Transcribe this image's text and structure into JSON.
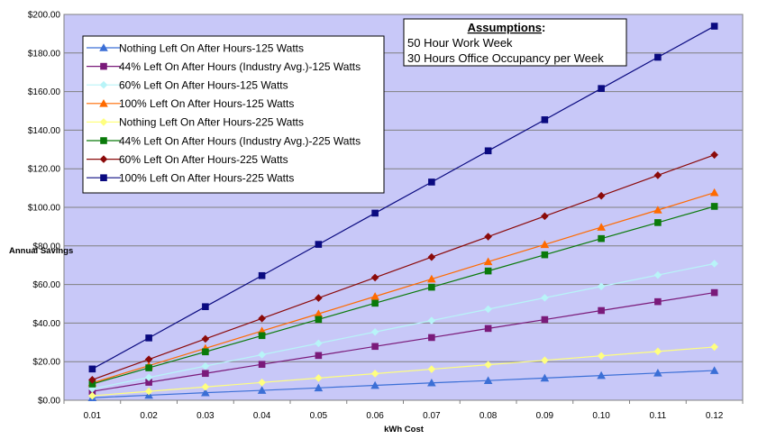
{
  "chart_data": {
    "type": "line",
    "xlabel": "kWh Cost",
    "ylabel": "Annual Savings",
    "ylim": [
      0,
      200
    ],
    "ytick_step": 20,
    "y_tick_labels": [
      "$0.00",
      "$20.00",
      "$40.00",
      "$60.00",
      "$80.00",
      "$100.00",
      "$120.00",
      "$140.00",
      "$160.00",
      "$180.00",
      "$200.00"
    ],
    "x": [
      "0.01",
      "0.02",
      "0.03",
      "0.04",
      "0.05",
      "0.06",
      "0.07",
      "0.08",
      "0.09",
      "0.10",
      "0.11",
      "0.12"
    ],
    "grid": "horizontal",
    "legend_position": "top-left",
    "plot_background": "#c8c8f8",
    "series": [
      {
        "name": "Nothing Left On After Hours-125 Watts",
        "color": "#3b6fd6",
        "marker": "triangle",
        "values": [
          1.3,
          2.6,
          3.9,
          5.1,
          6.4,
          7.7,
          9.0,
          10.2,
          11.5,
          12.8,
          14.1,
          15.4
        ]
      },
      {
        "name": "44% Left On After Hours (Industry Avg.)-125 Watts",
        "color": "#7a1a7a",
        "marker": "square",
        "values": [
          4.6,
          9.3,
          13.9,
          18.6,
          23.2,
          27.9,
          32.5,
          37.2,
          41.8,
          46.5,
          51.1,
          55.8
        ]
      },
      {
        "name": "60% Left On After Hours-125 Watts",
        "color": "#b8f4f8",
        "marker": "diamond",
        "values": [
          5.9,
          11.8,
          17.7,
          23.6,
          29.5,
          35.4,
          41.3,
          47.2,
          53.1,
          59.0,
          64.9,
          70.8
        ]
      },
      {
        "name": "100% Left On After Hours-125 Watts",
        "color": "#ff6a00",
        "marker": "triangle",
        "values": [
          9.0,
          17.9,
          26.9,
          35.9,
          44.8,
          53.8,
          62.8,
          71.8,
          80.7,
          89.7,
          98.6,
          107.6
        ]
      },
      {
        "name": "Nothing Left On After Hours-225 Watts",
        "color": "#ffff80",
        "marker": "diamond",
        "values": [
          2.3,
          4.6,
          6.9,
          9.2,
          11.5,
          13.8,
          16.1,
          18.4,
          20.7,
          23.0,
          25.3,
          27.6
        ]
      },
      {
        "name": "44% Left On After Hours (Industry Avg.)-225 Watts",
        "color": "#0a7a0a",
        "marker": "square",
        "values": [
          8.4,
          16.8,
          25.1,
          33.5,
          41.9,
          50.3,
          58.6,
          67.0,
          75.4,
          83.8,
          92.1,
          100.5
        ]
      },
      {
        "name": "60% Left On After Hours-225 Watts",
        "color": "#8b0a0a",
        "marker": "diamond",
        "values": [
          10.6,
          21.2,
          31.8,
          42.4,
          53.0,
          63.6,
          74.2,
          84.8,
          95.4,
          106.0,
          116.6,
          127.2
        ]
      },
      {
        "name": "100% Left On After Hours-225 Watts",
        "color": "#0a0a80",
        "marker": "square",
        "values": [
          16.2,
          32.3,
          48.5,
          64.6,
          80.8,
          97.0,
          113.1,
          129.3,
          145.4,
          161.6,
          177.8,
          193.9
        ]
      }
    ]
  },
  "assumptions": {
    "title": "Assumptions",
    "title_suffix": ":",
    "lines": [
      "50 Hour Work Week",
      "30 Hours Office Occupancy per Week"
    ]
  }
}
